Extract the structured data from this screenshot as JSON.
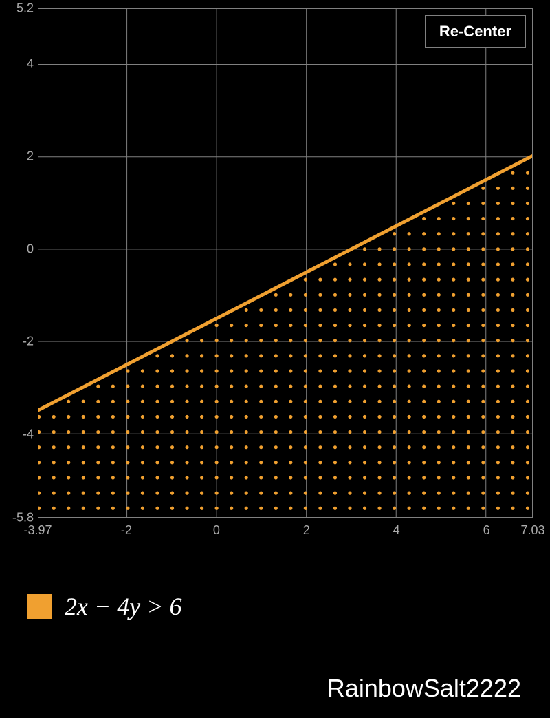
{
  "chart": {
    "type": "inequality-plot",
    "background_color": "#000000",
    "plot_background": "#0d0d0d",
    "grid_color": "#808080",
    "grid_width": 1,
    "axis_label_color": "#aaaaaa",
    "axis_label_fontsize": 18,
    "xlim": [
      -3.97,
      7.03
    ],
    "ylim": [
      -5.8,
      5.2
    ],
    "x_ticks": [
      {
        "value": -3.97,
        "label": "-3.97"
      },
      {
        "value": -2,
        "label": "-2"
      },
      {
        "value": 0,
        "label": "0"
      },
      {
        "value": 2,
        "label": "2"
      },
      {
        "value": 4,
        "label": "4"
      },
      {
        "value": 6,
        "label": "6"
      },
      {
        "value": 7.03,
        "label": "7.03"
      }
    ],
    "y_ticks": [
      {
        "value": 5.2,
        "label": "5.2"
      },
      {
        "value": 4,
        "label": "4"
      },
      {
        "value": 2,
        "label": "2"
      },
      {
        "value": 0,
        "label": "0"
      },
      {
        "value": -2,
        "label": "-2"
      },
      {
        "value": -4,
        "label": "-4"
      },
      {
        "value": -5.8,
        "label": "-5.8"
      }
    ],
    "x_gridlines": [
      -2,
      0,
      2,
      4,
      6
    ],
    "y_gridlines": [
      4,
      2,
      0,
      -2,
      -4
    ],
    "line": {
      "color": "#f0a030",
      "width": 5,
      "points": [
        {
          "x": -3.97,
          "y": -3.485
        },
        {
          "x": 7.03,
          "y": 2.015
        }
      ]
    },
    "shade_region": {
      "color": "#f0a030",
      "dot_radius": 2.6,
      "dot_spacing": 0.33,
      "below_line": true
    },
    "recenter_button": {
      "label": "Re-Center",
      "bg": "#000000",
      "fg": "#ffffff",
      "border": "#808080"
    }
  },
  "legend": {
    "swatch_color": "#f0a030",
    "expression_html": "2<span class='var'>x</span> − 4<span class='var'>y</span> > 6",
    "expression_plain": "2x − 4y > 6"
  },
  "watermark": "RainbowSalt2222"
}
